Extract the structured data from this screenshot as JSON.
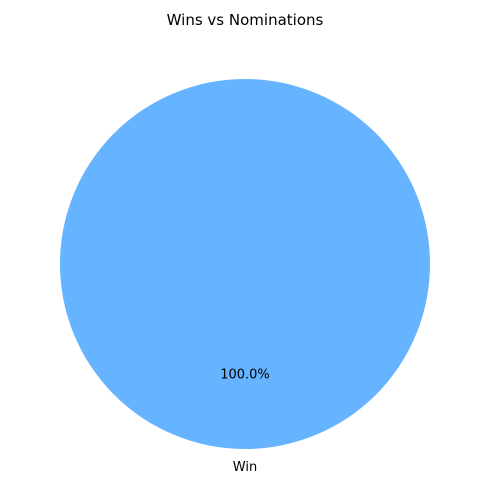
{
  "chart_data": {
    "type": "pie",
    "title": "Wins vs Nominations",
    "categories": [
      "Win"
    ],
    "values": [
      1
    ],
    "percent_labels": [
      "100.0%"
    ],
    "colors": [
      "#66b3ff"
    ],
    "legend": "none"
  }
}
